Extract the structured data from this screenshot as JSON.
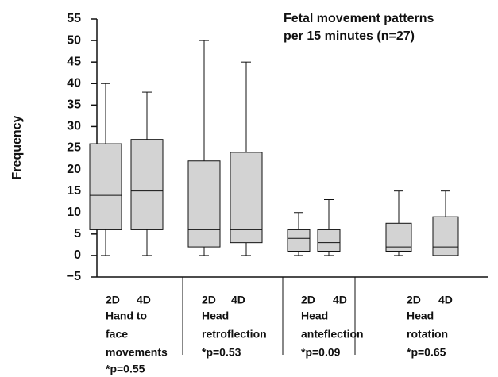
{
  "chart_data": {
    "type": "box",
    "title": [
      "Fetal movement patterns",
      "per 15 minutes (n=27)"
    ],
    "ylabel": "Frequency",
    "ylim": [
      -5,
      55
    ],
    "yticks": [
      {
        "value": -5,
        "label": "−5"
      },
      0,
      5,
      10,
      15,
      20,
      25,
      30,
      35,
      40,
      45,
      50,
      55
    ],
    "color": "#d3d3d3",
    "groups": [
      {
        "name": [
          "Hand to",
          "face",
          "movements"
        ],
        "note": "*p=0.55",
        "boxes": [
          {
            "name": "2D",
            "min": 0,
            "q1": 6,
            "median": 14,
            "q3": 26,
            "max": 40
          },
          {
            "name": "4D",
            "min": 0,
            "q1": 6,
            "median": 15,
            "q3": 27,
            "max": 38
          }
        ]
      },
      {
        "name": [
          "Head",
          "retroflection"
        ],
        "note": "*p=0.53",
        "boxes": [
          {
            "name": "2D",
            "min": 0,
            "q1": 2,
            "median": 6,
            "q3": 22,
            "max": 50
          },
          {
            "name": "4D",
            "min": 0,
            "q1": 3,
            "median": 6,
            "q3": 24,
            "max": 45
          }
        ]
      },
      {
        "name": [
          "Head",
          "anteflection"
        ],
        "note": "*p=0.09",
        "boxes": [
          {
            "name": "2D",
            "min": 0,
            "q1": 1,
            "median": 4,
            "q3": 6,
            "max": 10
          },
          {
            "name": "4D",
            "min": 0,
            "q1": 1,
            "median": 3,
            "q3": 6,
            "max": 13
          }
        ]
      },
      {
        "name": [
          "Head",
          "rotation"
        ],
        "note": "*p=0.65",
        "boxes": [
          {
            "name": "2D",
            "min": 0,
            "q1": 1,
            "median": 2,
            "q3": 7.5,
            "max": 15
          },
          {
            "name": "4D",
            "min": 0,
            "q1": 0,
            "median": 2,
            "q3": 9,
            "max": 15
          }
        ]
      }
    ]
  }
}
